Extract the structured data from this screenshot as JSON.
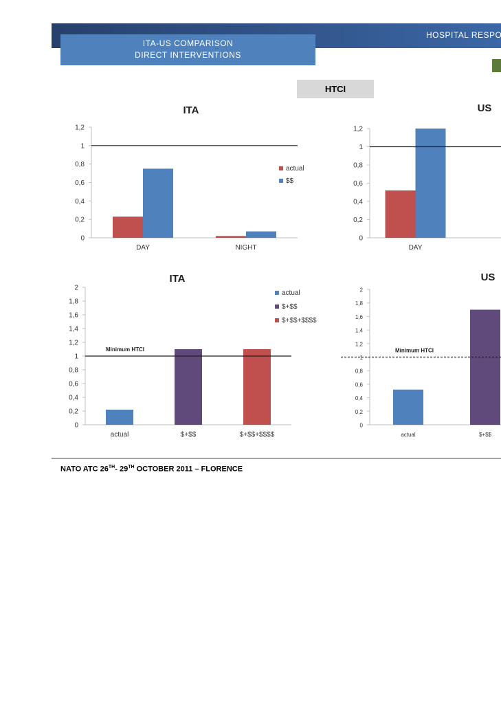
{
  "header": {
    "right_text": "HOSPITAL RESPO"
  },
  "title_box": {
    "line1": "ITA-US COMPARISON",
    "line2": "DIRECT INTERVENTIONS"
  },
  "section_label": "HTCI",
  "footer": {
    "part1": "NATO ATC  26",
    "sup1": "TH",
    "part2": "- 29",
    "sup2": "TH",
    "part3": "  OCTOBER 2011 – FLORENCE"
  },
  "colors": {
    "actual": "#c0504d",
    "dollar": "#4f81bd",
    "purple": "#604a7b",
    "header": "#27406b"
  },
  "chart_data": [
    {
      "type": "bar",
      "title": "ITA",
      "categories": [
        "DAY",
        "NIGHT"
      ],
      "series": [
        {
          "name": "actual",
          "color": "#c0504d",
          "values": [
            0.23,
            0.02
          ]
        },
        {
          "name": "$$",
          "color": "#4f81bd",
          "values": [
            0.75,
            0.07
          ]
        }
      ],
      "ylim": [
        0,
        1.2
      ],
      "yticks": [
        "0",
        "0,2",
        "0,4",
        "0,6",
        "0,8",
        "1",
        "1,2"
      ],
      "reference_line": {
        "value": 1,
        "label": ""
      },
      "legend": "right"
    },
    {
      "type": "bar",
      "title": "US",
      "categories": [
        "DAY",
        ""
      ],
      "series": [
        {
          "name": "actual",
          "color": "#c0504d",
          "values": [
            0.52,
            null
          ]
        },
        {
          "name": "$$",
          "color": "#4f81bd",
          "values": [
            1.2,
            null
          ]
        }
      ],
      "ylim": [
        0,
        1.2
      ],
      "yticks": [
        "0",
        "0,2",
        "0,4",
        "0,6",
        "0,8",
        "1",
        "1,2"
      ],
      "reference_line": {
        "value": 1,
        "label": ""
      },
      "legend": "none"
    },
    {
      "type": "bar",
      "title": "ITA",
      "categories": [
        "actual",
        "$+$$",
        "$+$$+$$$$"
      ],
      "values": [
        0.22,
        1.1,
        1.1
      ],
      "colors": [
        "#4f81bd",
        "#604a7b",
        "#c0504d"
      ],
      "legend_entries": [
        {
          "name": "actual",
          "color": "#4f81bd"
        },
        {
          "name": "$+$$",
          "color": "#604a7b"
        },
        {
          "name": "$+$$+$$$$",
          "color": "#c0504d"
        }
      ],
      "ylim": [
        0,
        2
      ],
      "yticks": [
        "0",
        "0,2",
        "0,4",
        "0,6",
        "0,8",
        "1",
        "1,2",
        "1,4",
        "1,6",
        "1,8",
        "2"
      ],
      "reference_line": {
        "value": 1,
        "label": "Minimum HTCI"
      },
      "legend": "top-right"
    },
    {
      "type": "bar",
      "title": "US",
      "categories": [
        "actual",
        "$+$$"
      ],
      "values": [
        0.52,
        1.7
      ],
      "colors": [
        "#4f81bd",
        "#604a7b"
      ],
      "ylim": [
        0,
        2
      ],
      "yticks": [
        "0",
        "0,2",
        "0,4",
        "0,6",
        "0,8",
        "1",
        "1,2",
        "1,4",
        "1,6",
        "1,8",
        "2"
      ],
      "reference_line": {
        "value": 1,
        "label": "Minimum HTCI"
      },
      "legend": "none"
    }
  ]
}
